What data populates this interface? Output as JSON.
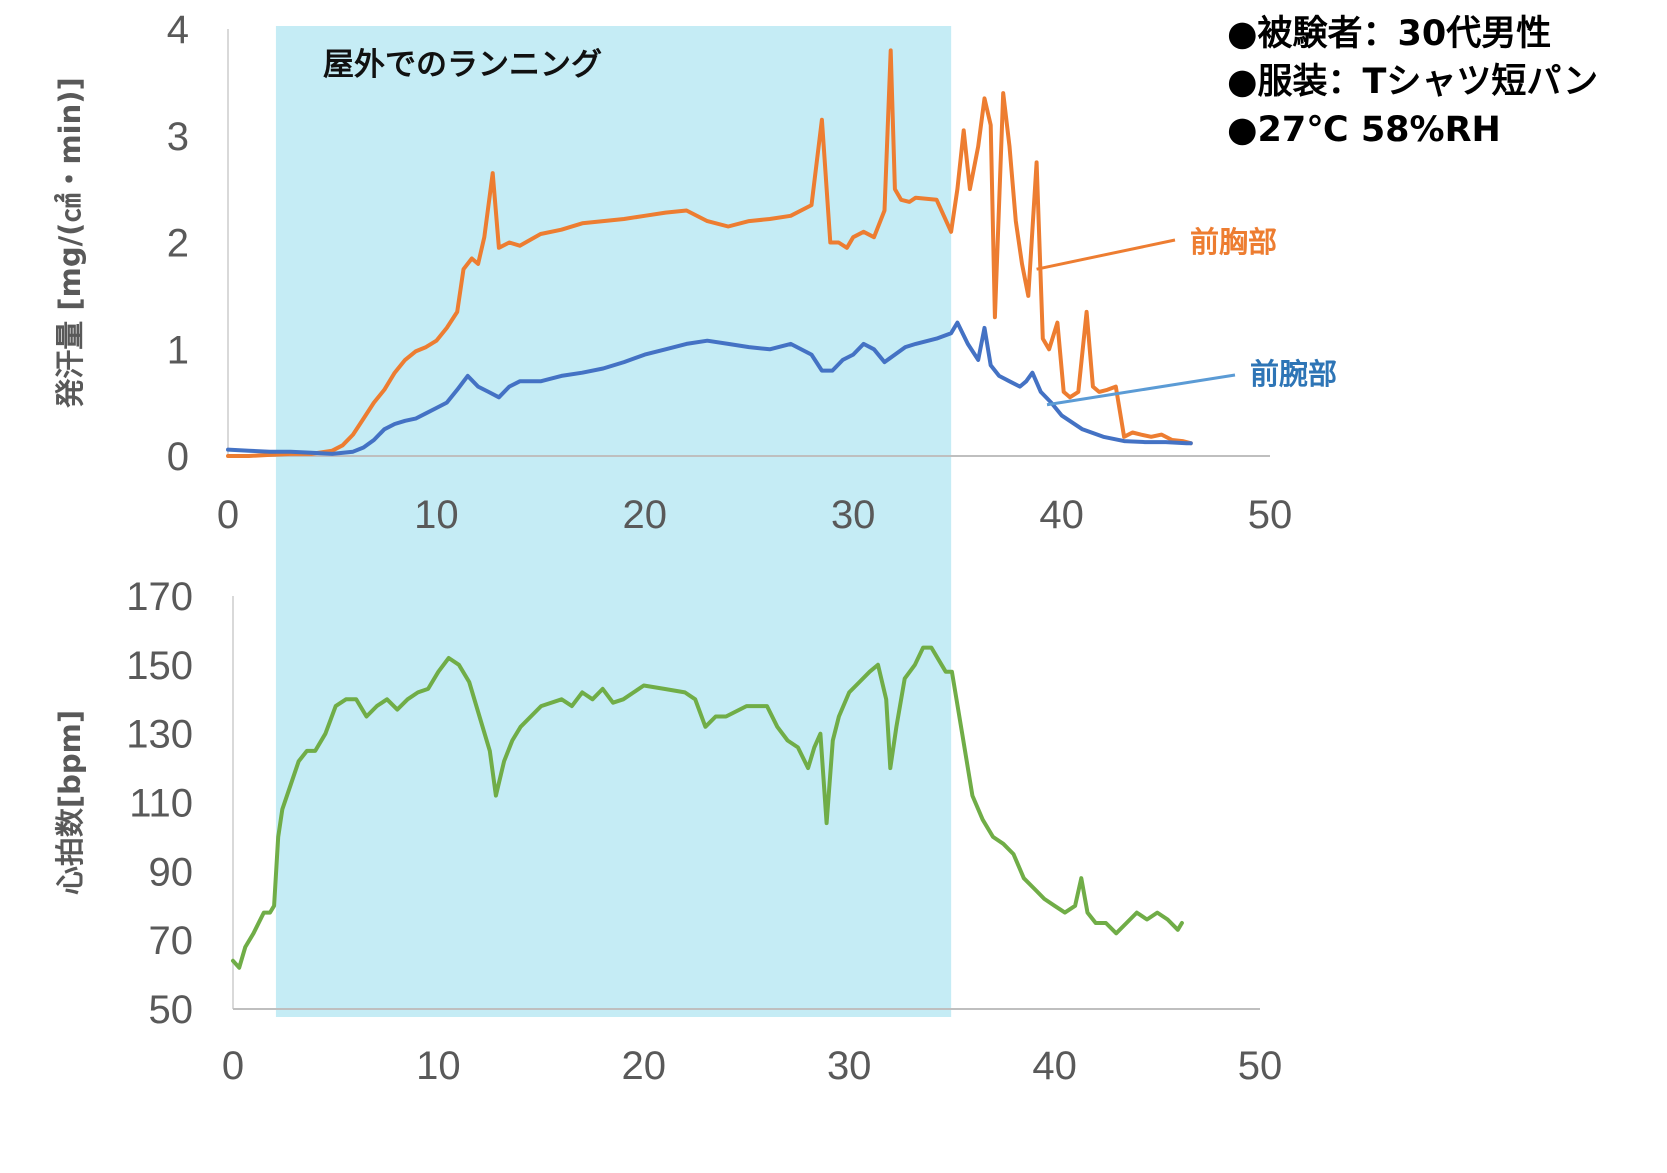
{
  "chart_data": [
    {
      "type": "line",
      "ylabel": "発汗量 [mg/(㎠・min)]",
      "xlabel": "",
      "xlim": [
        0,
        50
      ],
      "ylim": [
        0,
        4
      ],
      "xticks": [
        "0",
        "10",
        "20",
        "30",
        "40",
        "50"
      ],
      "yticks": [
        "0",
        "1",
        "2",
        "3",
        "4"
      ],
      "grid": false,
      "shaded_region": {
        "x": [
          2.3,
          34.7
        ],
        "label": "屋外でのランニング",
        "color": "#c5ecf5"
      },
      "annotations": [
        "●被験者：30代男性",
        "●服装：Tシャツ短パン",
        "●27℃ 58%RH"
      ],
      "series": [
        {
          "name": "前胸部",
          "color": "#ed7d31",
          "x": [
            0,
            1,
            2,
            3,
            4,
            5,
            5.5,
            6,
            6.5,
            7,
            7.5,
            8,
            8.5,
            9,
            9.5,
            10,
            10.5,
            11,
            11.3,
            11.7,
            12,
            12.3,
            12.7,
            13,
            13.5,
            14,
            15,
            16,
            17,
            18,
            19,
            20,
            21,
            22,
            23,
            24,
            25,
            26,
            27,
            28,
            28.5,
            28.9,
            29.3,
            29.7,
            30,
            30.5,
            31,
            31.5,
            31.8,
            32,
            32.3,
            32.7,
            33,
            34,
            34.7,
            35,
            35.3,
            35.6,
            36,
            36.3,
            36.6,
            36.8,
            37.2,
            37.5,
            37.8,
            38.1,
            38.4,
            38.8,
            39.1,
            39.4,
            39.8,
            40.1,
            40.4,
            40.8,
            41.2,
            41.5,
            41.8,
            42.2,
            42.6,
            43,
            43.4,
            43.8,
            44.3,
            44.8,
            45.3,
            45.8,
            46.2
          ],
          "y": [
            0.0,
            0.0,
            0.01,
            0.02,
            0.02,
            0.05,
            0.1,
            0.2,
            0.35,
            0.5,
            0.62,
            0.78,
            0.9,
            0.98,
            1.02,
            1.08,
            1.2,
            1.35,
            1.75,
            1.85,
            1.8,
            2.05,
            2.65,
            1.95,
            2.0,
            1.97,
            2.08,
            2.12,
            2.18,
            2.2,
            2.22,
            2.25,
            2.28,
            2.3,
            2.2,
            2.15,
            2.2,
            2.22,
            2.25,
            2.35,
            3.15,
            2.0,
            2.0,
            1.95,
            2.05,
            2.1,
            2.05,
            2.3,
            3.8,
            2.5,
            2.4,
            2.38,
            2.42,
            2.4,
            2.1,
            2.5,
            3.05,
            2.5,
            2.9,
            3.35,
            3.1,
            1.3,
            3.4,
            2.9,
            2.2,
            1.8,
            1.5,
            2.75,
            1.1,
            1.0,
            1.25,
            0.6,
            0.55,
            0.6,
            1.35,
            0.65,
            0.6,
            0.62,
            0.65,
            0.18,
            0.22,
            0.2,
            0.18,
            0.2,
            0.15,
            0.14,
            0.12
          ]
        },
        {
          "name": "前腕部",
          "color": "#4472c4",
          "x": [
            0,
            1,
            2,
            3,
            4,
            5,
            6,
            6.5,
            7,
            7.5,
            8,
            8.5,
            9,
            9.5,
            10,
            10.5,
            11,
            11.5,
            12,
            12.5,
            13,
            13.5,
            14,
            15,
            16,
            17,
            18,
            19,
            20,
            21,
            22,
            23,
            24,
            25,
            26,
            27,
            28,
            28.5,
            29,
            29.5,
            30,
            30.5,
            31,
            31.5,
            32,
            32.5,
            33,
            34,
            34.7,
            35,
            35.5,
            36,
            36.3,
            36.6,
            37,
            37.5,
            38,
            38.3,
            38.6,
            39,
            39.5,
            40,
            41,
            42,
            43,
            44,
            45,
            46,
            46.2
          ],
          "y": [
            0.06,
            0.05,
            0.04,
            0.04,
            0.03,
            0.02,
            0.04,
            0.08,
            0.15,
            0.25,
            0.3,
            0.33,
            0.35,
            0.4,
            0.45,
            0.5,
            0.62,
            0.75,
            0.65,
            0.6,
            0.55,
            0.65,
            0.7,
            0.7,
            0.75,
            0.78,
            0.82,
            0.88,
            0.95,
            1.0,
            1.05,
            1.08,
            1.05,
            1.02,
            1.0,
            1.05,
            0.95,
            0.8,
            0.8,
            0.9,
            0.95,
            1.05,
            1.0,
            0.88,
            0.95,
            1.02,
            1.05,
            1.1,
            1.15,
            1.25,
            1.05,
            0.9,
            1.2,
            0.85,
            0.75,
            0.7,
            0.65,
            0.7,
            0.78,
            0.6,
            0.5,
            0.38,
            0.25,
            0.18,
            0.14,
            0.13,
            0.13,
            0.12,
            0.12
          ]
        }
      ],
      "legend": [
        {
          "label": "前胸部",
          "series": "前胸部",
          "color": "#ed7d31",
          "line_color": "#ed7d31",
          "point": [
            38.8,
            1.75
          ]
        },
        {
          "label": "前腕部",
          "series": "前腕部",
          "color": "#2e75b6",
          "line_color": "#5b9bd5",
          "point": [
            39.3,
            0.48
          ]
        }
      ]
    },
    {
      "type": "line",
      "ylabel": "心拍数[bpm]",
      "xlabel": "",
      "xlim": [
        0,
        50
      ],
      "ylim": [
        50,
        170
      ],
      "xticks": [
        "0",
        "10",
        "20",
        "30",
        "40",
        "50"
      ],
      "yticks": [
        "50",
        "70",
        "90",
        "110",
        "130",
        "150",
        "170"
      ],
      "grid": false,
      "series": [
        {
          "name": "",
          "color": "#70ad47",
          "x": [
            0,
            0.3,
            0.6,
            1,
            1.5,
            1.8,
            2,
            2.2,
            2.4,
            2.8,
            3.2,
            3.6,
            4,
            4.5,
            5,
            5.5,
            6,
            6.5,
            7,
            7.5,
            8,
            8.5,
            9,
            9.5,
            10,
            10.5,
            11,
            11.5,
            12,
            12.5,
            12.8,
            13.2,
            13.6,
            14,
            15,
            16,
            16.5,
            17,
            17.5,
            18,
            18.5,
            19,
            20,
            21,
            22,
            22.5,
            23,
            23.5,
            24,
            25,
            26,
            26.5,
            27,
            27.5,
            28,
            28.3,
            28.6,
            28.9,
            29.2,
            29.5,
            30,
            30.5,
            31,
            31.4,
            31.8,
            32,
            32.3,
            32.7,
            33.2,
            33.6,
            34,
            34.5,
            34.7,
            35,
            35.5,
            36,
            36.5,
            37,
            37.5,
            38,
            38.5,
            39,
            39.5,
            40,
            40.5,
            41,
            41.3,
            41.6,
            42,
            42.5,
            43,
            43.5,
            44,
            44.5,
            45,
            45.5,
            46,
            46.2
          ],
          "y": [
            64,
            62,
            68,
            72,
            78,
            78,
            80,
            100,
            108,
            115,
            122,
            125,
            125,
            130,
            138,
            140,
            140,
            135,
            138,
            140,
            137,
            140,
            142,
            143,
            148,
            152,
            150,
            145,
            135,
            125,
            112,
            122,
            128,
            132,
            138,
            140,
            138,
            142,
            140,
            143,
            139,
            140,
            144,
            143,
            142,
            140,
            132,
            135,
            135,
            138,
            138,
            132,
            128,
            126,
            120,
            126,
            130,
            104,
            128,
            135,
            142,
            145,
            148,
            150,
            140,
            120,
            132,
            146,
            150,
            155,
            155,
            150,
            148,
            148,
            130,
            112,
            105,
            100,
            98,
            95,
            88,
            85,
            82,
            80,
            78,
            80,
            88,
            78,
            75,
            75,
            72,
            75,
            78,
            76,
            78,
            76,
            73,
            75
          ]
        }
      ]
    }
  ]
}
